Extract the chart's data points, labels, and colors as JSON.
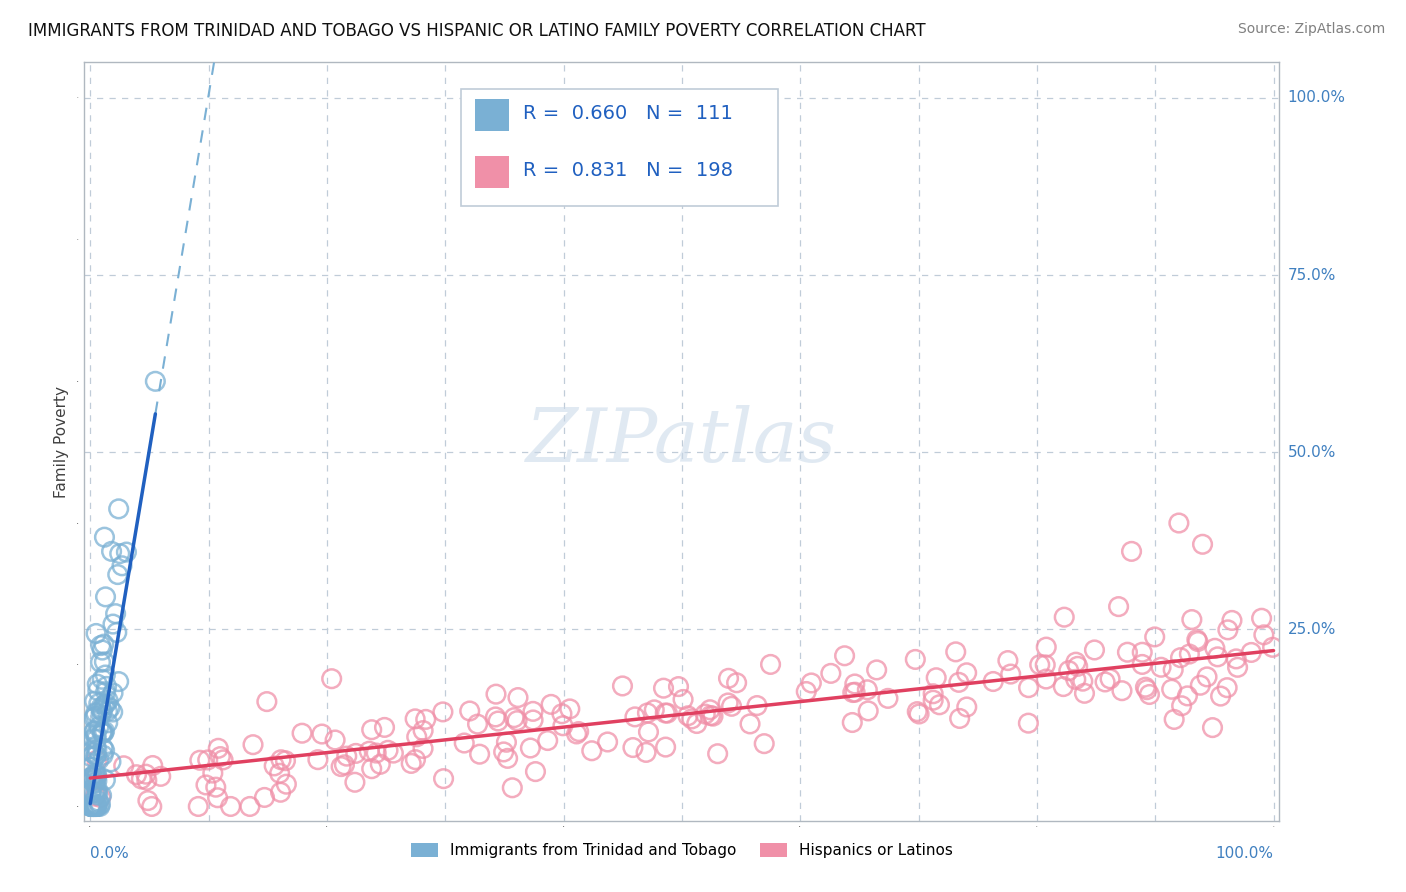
{
  "title": "IMMIGRANTS FROM TRINIDAD AND TOBAGO VS HISPANIC OR LATINO FAMILY POVERTY CORRELATION CHART",
  "source": "Source: ZipAtlas.com",
  "ylabel": "Family Poverty",
  "blue_R": 0.66,
  "blue_N": 111,
  "pink_R": 0.831,
  "pink_N": 198,
  "blue_color": "#7ab0d4",
  "pink_color": "#f090a8",
  "blue_line_color": "#2060c0",
  "pink_line_color": "#e04060",
  "legend_blue_label": "Immigrants from Trinidad and Tobago",
  "legend_pink_label": "Hispanics or Latinos",
  "watermark_text": "ZIPatlas",
  "background_color": "#ffffff",
  "grid_color": "#c0ccd8",
  "title_fontsize": 12,
  "right_label_color": "#4080c0"
}
